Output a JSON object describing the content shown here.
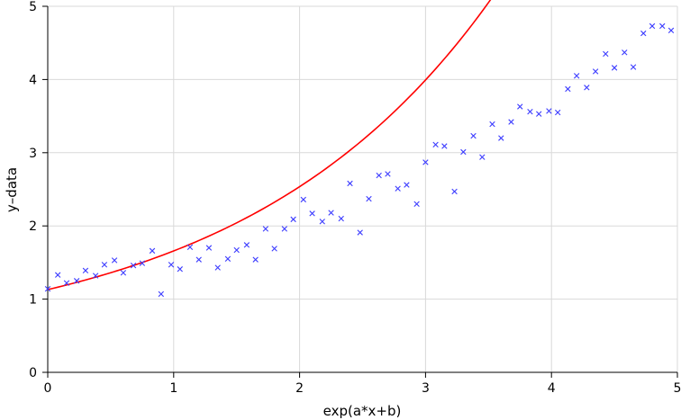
{
  "chart_data": {
    "type": "scatter",
    "title": "",
    "xlabel": "exp(a*x+b)",
    "ylabel": "y–data",
    "xlim": [
      0,
      5
    ],
    "ylim": [
      0,
      5
    ],
    "x_ticks": [
      0,
      1,
      2,
      3,
      4,
      5
    ],
    "y_ticks": [
      0,
      1,
      2,
      3,
      4,
      5
    ],
    "x_tick_labels": [
      "0",
      "1",
      "2",
      "3",
      "4",
      "5"
    ],
    "y_tick_labels": [
      "0",
      "1",
      "2",
      "3",
      "4",
      "5"
    ],
    "grid": true,
    "legend": "none",
    "colors": {
      "points": "#3b3bff",
      "fit": "#ff0000",
      "grid": "#d9d9d9",
      "axis": "#000000"
    },
    "series": [
      {
        "type": "scatter",
        "marker": "x",
        "x": [
          0.0,
          0.08,
          0.15,
          0.23,
          0.3,
          0.38,
          0.45,
          0.53,
          0.6,
          0.68,
          0.75,
          0.83,
          0.9,
          0.98,
          1.05,
          1.13,
          1.2,
          1.28,
          1.35,
          1.43,
          1.5,
          1.58,
          1.65,
          1.73,
          1.8,
          1.88,
          1.95,
          2.03,
          2.1,
          2.18,
          2.25,
          2.33,
          2.4,
          2.48,
          2.55,
          2.63,
          2.7,
          2.78,
          2.85,
          2.93,
          3.0,
          3.08,
          3.15,
          3.23,
          3.3,
          3.38,
          3.45,
          3.53,
          3.6,
          3.68,
          3.75,
          3.83,
          3.9,
          3.98,
          4.05,
          4.13,
          4.2,
          4.28,
          4.35,
          4.43,
          4.5,
          4.58,
          4.65,
          4.73,
          4.8,
          4.88,
          4.95
        ],
        "y": [
          1.14,
          1.33,
          1.22,
          1.25,
          1.39,
          1.32,
          1.47,
          1.53,
          1.36,
          1.46,
          1.49,
          1.66,
          1.07,
          1.47,
          1.41,
          1.71,
          1.54,
          1.7,
          1.43,
          1.55,
          1.67,
          1.74,
          1.54,
          1.96,
          1.69,
          1.96,
          2.09,
          2.36,
          2.17,
          2.06,
          2.18,
          2.1,
          2.58,
          1.91,
          2.37,
          2.69,
          2.71,
          2.51,
          2.56,
          2.3,
          2.87,
          3.11,
          3.09,
          2.47,
          3.01,
          3.23,
          2.94,
          3.39,
          3.2,
          3.42,
          3.63,
          3.56,
          3.53,
          3.57,
          3.55,
          3.87,
          4.05,
          3.89,
          4.11,
          4.35,
          4.16,
          4.37,
          4.17,
          4.63,
          4.73,
          4.73,
          4.67
        ]
      },
      {
        "type": "line",
        "fit": {
          "model": "a*exp(b*x)+c",
          "a": 0.8,
          "b": 0.5072,
          "c": 0.33
        },
        "x_range": [
          0,
          5
        ]
      }
    ]
  }
}
